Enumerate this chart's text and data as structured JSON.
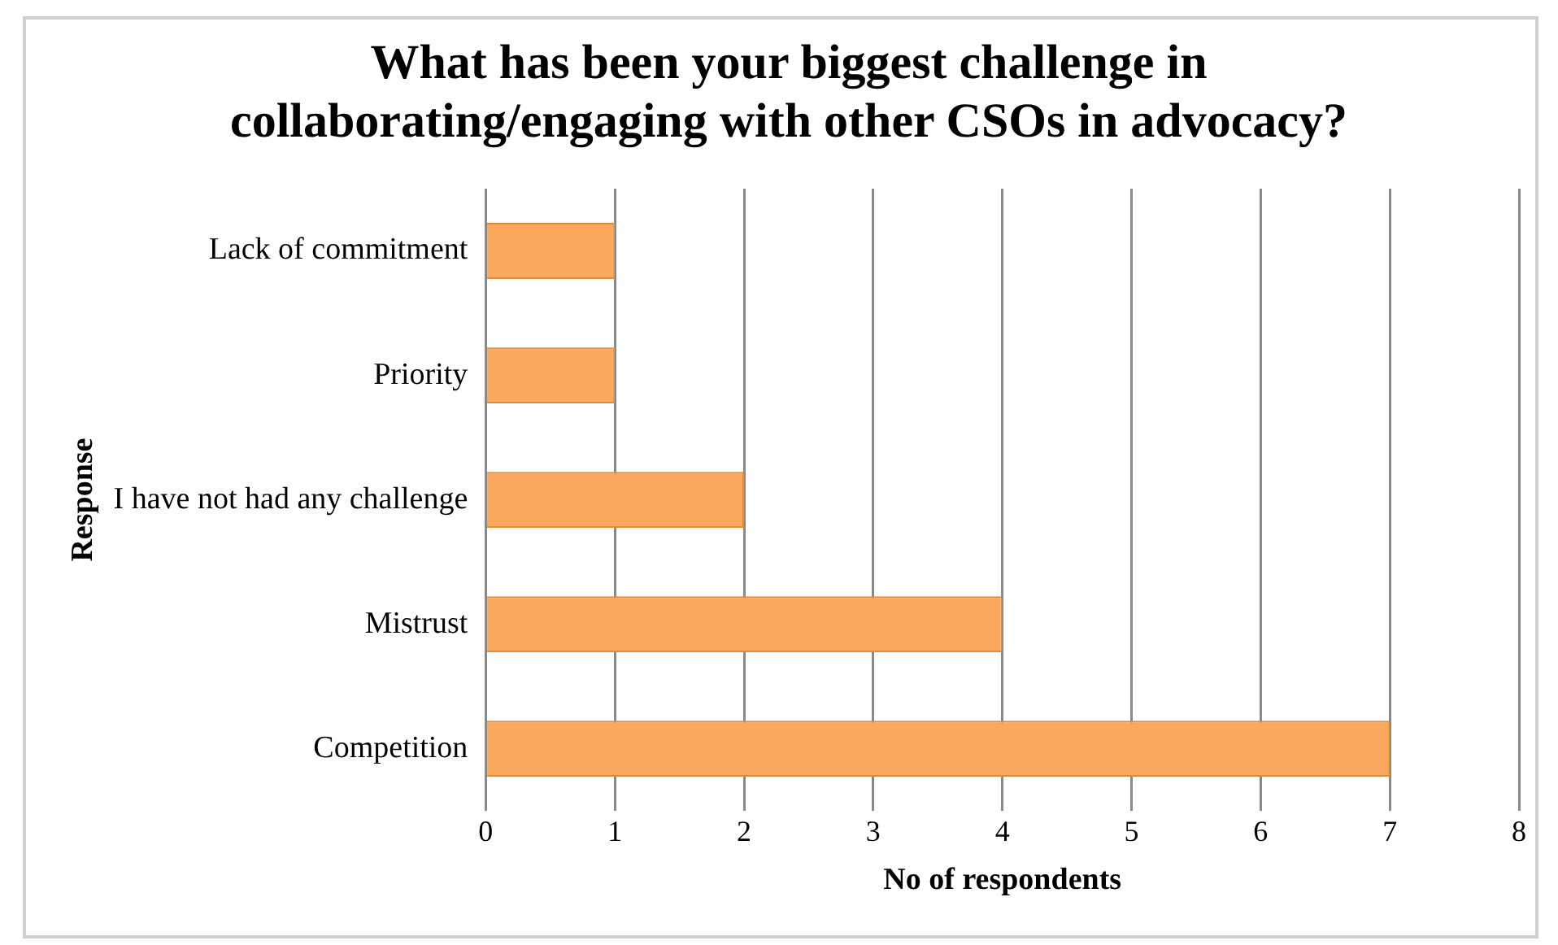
{
  "chart_data": {
    "type": "bar",
    "orientation": "horizontal",
    "title": "What has been your biggest challenge in collaborating/engaging with other CSOs in advocacy?",
    "xlabel": "No of respondents",
    "ylabel": "Response",
    "categories": [
      "Lack of commitment",
      "Priority",
      "I have not had any challenge",
      "Mistrust",
      "Competition"
    ],
    "values": [
      1,
      1,
      2,
      4,
      7
    ],
    "color": "#f9a85e",
    "xlim": [
      0,
      8
    ],
    "xticks": [
      0,
      1,
      2,
      3,
      4,
      5,
      6,
      7,
      8
    ],
    "grid": "x",
    "legend": false
  }
}
